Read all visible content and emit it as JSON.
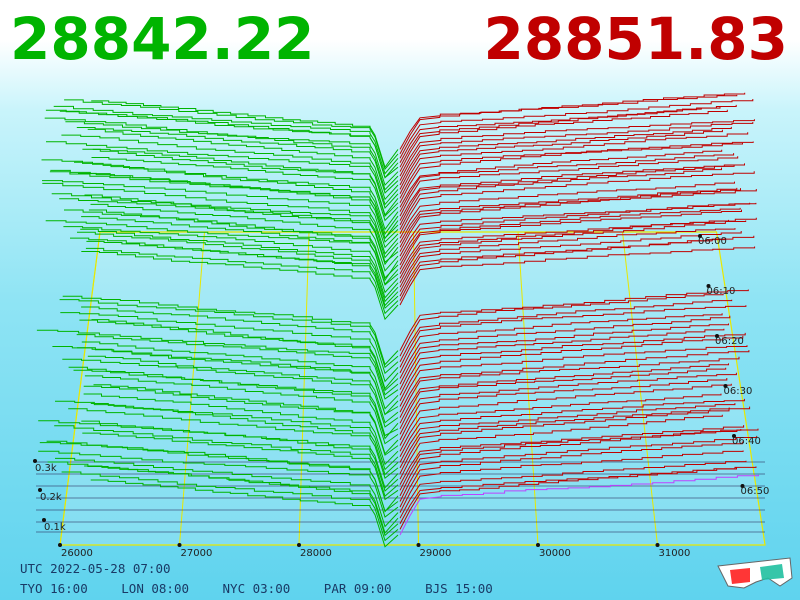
{
  "prices": {
    "bid": "28842.22",
    "ask": "28851.83"
  },
  "timestamp": "UTC 2022-05-28 07:00",
  "zones": [
    {
      "label": "TYO 16:00"
    },
    {
      "label": "LON 08:00"
    },
    {
      "label": "NYC 03:00"
    },
    {
      "label": "PAR 09:00"
    },
    {
      "label": "BJS 15:00"
    }
  ],
  "colors": {
    "bid": "#00b400",
    "ask": "#c00000",
    "grid": "#e8e800",
    "latest_ask": "#c040ff"
  },
  "chart_data": {
    "type": "line",
    "description_kind": "3d order book depth over time",
    "x_label_ticks": [
      "26000",
      "27000",
      "28000",
      "29000",
      "30000",
      "31000"
    ],
    "x_values": [
      26000,
      27000,
      28000,
      29000,
      30000,
      31000
    ],
    "depth_ticks": [
      "0.1k",
      "0.2k",
      "0.3k"
    ],
    "depth_values": [
      100,
      200,
      300
    ],
    "time_ticks": [
      "06:00",
      "06:10",
      "06:20",
      "06:30",
      "06:40",
      "06:50"
    ],
    "mid_price": 28847,
    "bid_price": 28842.22,
    "ask_price": 28851.83
  }
}
